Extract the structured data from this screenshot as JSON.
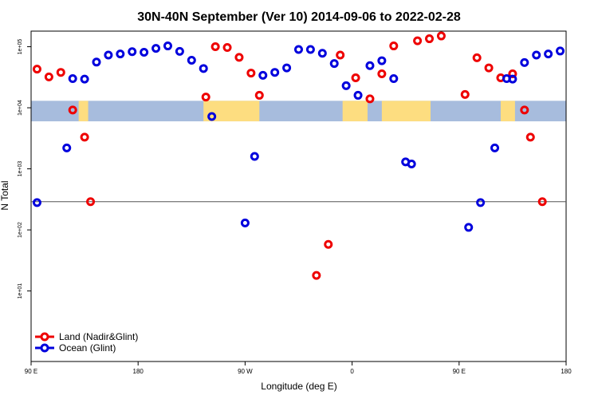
{
  "chart_data": {
    "type": "scatter",
    "title": "30N-40N September (Ver 10)   2014-09-06 to 2022-02-28",
    "xlabel": "Longitude (deg E)",
    "ylabel": "N Total",
    "y_scale": "log",
    "xlim": [
      90,
      540
    ],
    "ylim": [
      0.7,
      180000
    ],
    "x_ticks": [
      {
        "value": 90,
        "label": "90 E"
      },
      {
        "value": 180,
        "label": "180"
      },
      {
        "value": 270,
        "label": "90 W"
      },
      {
        "value": 360,
        "label": "0"
      },
      {
        "value": 450,
        "label": "90 E"
      },
      {
        "value": 540,
        "label": "180"
      }
    ],
    "y_ticks": [
      {
        "value": 10,
        "label": "1e+01"
      },
      {
        "value": 100,
        "label": "1e+02"
      },
      {
        "value": 1000,
        "label": "1e+03"
      },
      {
        "value": 10000,
        "label": "1e+04"
      },
      {
        "value": 100000,
        "label": "1e+05"
      }
    ],
    "reference_line_y": 290,
    "land_band_y": [
      6000,
      13000
    ],
    "legend_position": "bottom-left",
    "series": [
      {
        "name": "Land (Nadir&Glint)",
        "color": "#ee0000",
        "x": [
          95,
          105,
          115,
          125,
          135,
          140,
          237,
          245,
          255,
          265,
          275,
          282,
          330,
          340,
          350,
          363,
          375,
          385,
          395,
          415,
          425,
          435,
          455,
          465,
          475,
          485,
          495,
          505,
          510,
          520
        ],
        "y": [
          43000,
          32000,
          38000,
          9200,
          3300,
          290,
          15000,
          100000,
          97000,
          67000,
          37000,
          16000,
          18,
          58,
          73000,
          31000,
          14000,
          36000,
          103000,
          125000,
          135000,
          150000,
          16500,
          66000,
          45000,
          31000,
          36000,
          9200,
          3300,
          290
        ]
      },
      {
        "name": "Ocean (Glint)",
        "color": "#0000dd",
        "x": [
          95,
          120,
          125,
          135,
          145,
          155,
          165,
          175,
          185,
          195,
          205,
          215,
          225,
          235,
          242,
          270,
          278,
          285,
          295,
          305,
          315,
          325,
          335,
          345,
          355,
          365,
          375,
          385,
          395,
          405,
          410,
          458,
          468,
          480,
          490,
          495,
          505,
          515,
          525,
          535
        ],
        "y": [
          280,
          2200,
          30000,
          29500,
          56000,
          73000,
          76000,
          83000,
          81000,
          94000,
          103000,
          84000,
          60000,
          44000,
          7200,
          130,
          1600,
          34000,
          38000,
          45000,
          90000,
          90000,
          78000,
          53000,
          23000,
          16000,
          49000,
          59000,
          30000,
          1300,
          1200,
          110,
          280,
          2200,
          30000,
          29500,
          55000,
          73000,
          76000,
          85000
        ]
      }
    ]
  }
}
